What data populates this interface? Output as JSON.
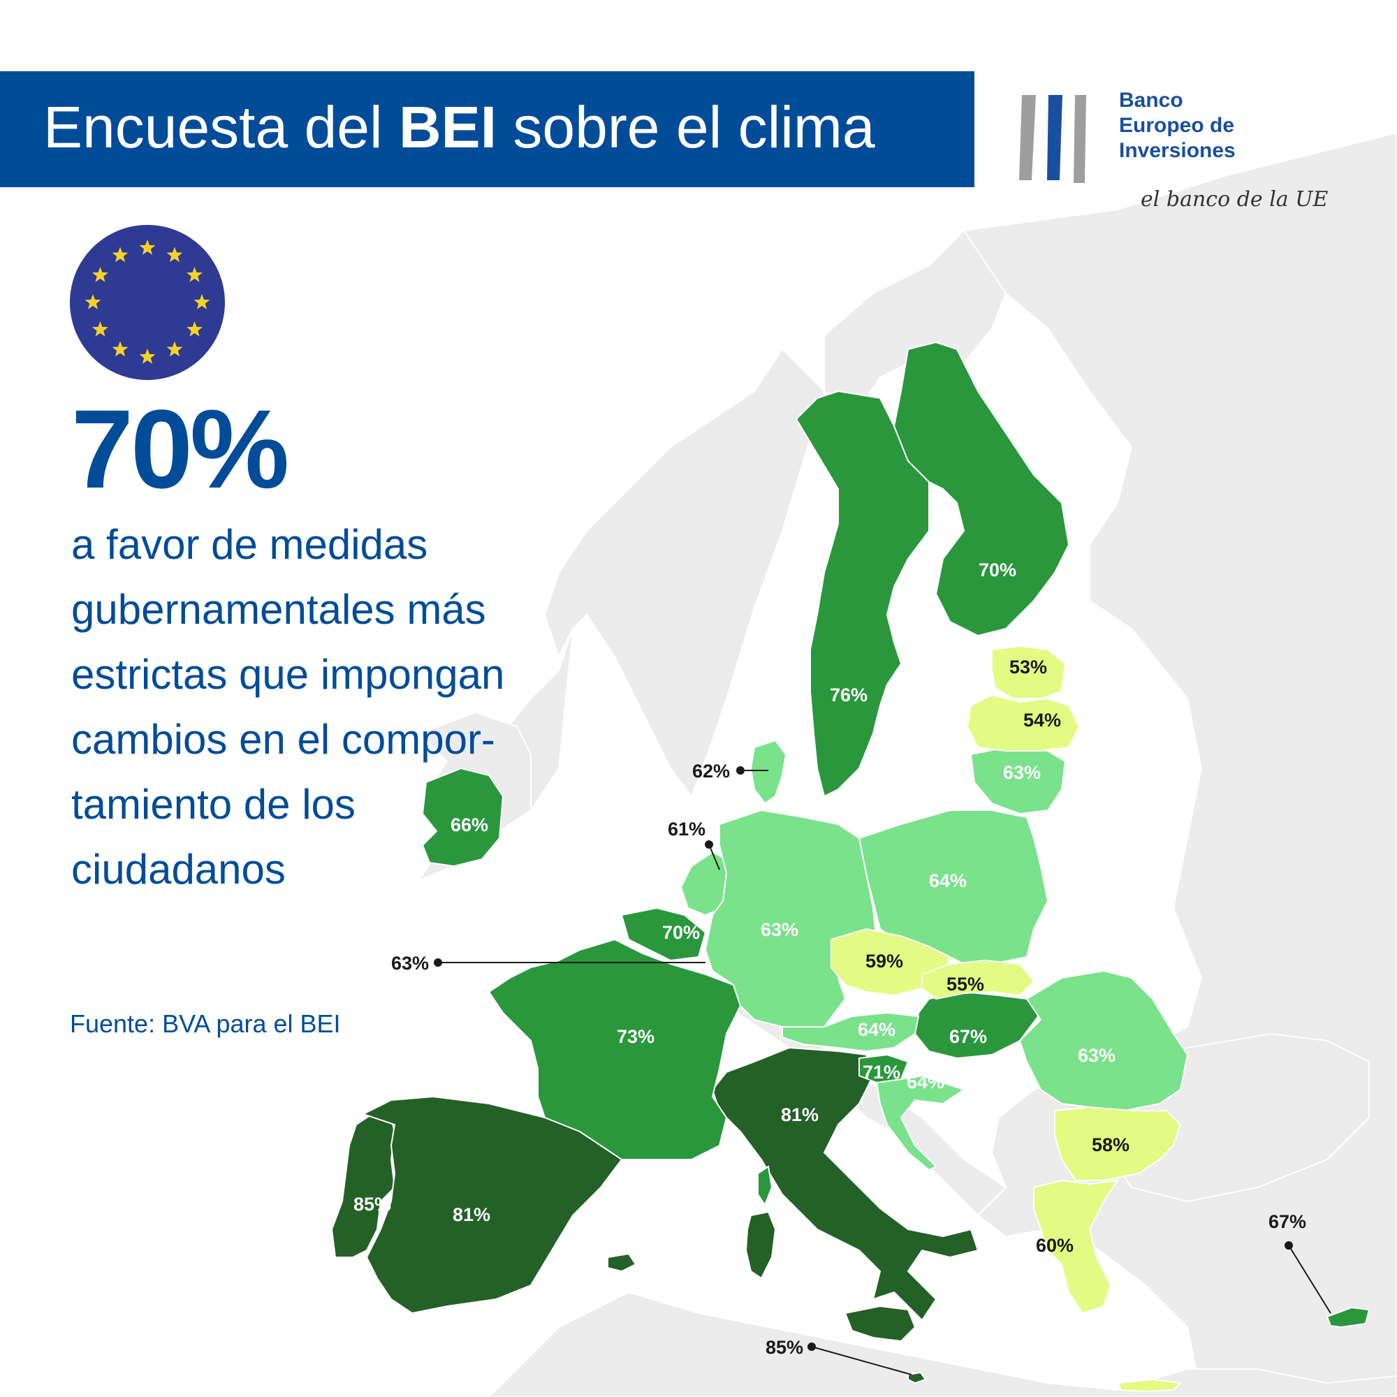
{
  "header": {
    "title_prefix": "Encuesta del ",
    "title_bold": "BEI",
    "title_suffix": " sobre el clima"
  },
  "logo": {
    "name_lines": [
      "Banco",
      "Europeo de",
      "Inversiones"
    ],
    "tagline": "el banco de la UE"
  },
  "headline": {
    "percent": "70%",
    "description_lines": [
      "a favor de medidas",
      "gubernamentales más",
      "estrictas que impongan",
      "cambios en el compor-",
      "tamiento de los",
      "ciudadanos"
    ]
  },
  "source": "Fuente: BVA para el BEI",
  "colors": {
    "brand_blue": "#004c99",
    "eu_flag_blue": "#2e3a93",
    "eu_flag_star": "#f5d327",
    "tier_darkest": "#236127",
    "tier_dark": "#2a973d",
    "tier_light": "#79e28b",
    "tier_yellow": "#e3fb82",
    "non_eu_land": "#ececec"
  },
  "map": {
    "country_values": [
      {
        "country": "Finland",
        "value": "70%"
      },
      {
        "country": "Sweden",
        "value": "76%"
      },
      {
        "country": "Estonia",
        "value": "53%"
      },
      {
        "country": "Latvia",
        "value": "54%"
      },
      {
        "country": "Lithuania",
        "value": "63%"
      },
      {
        "country": "Denmark",
        "value": "62%"
      },
      {
        "country": "Ireland",
        "value": "66%"
      },
      {
        "country": "Netherlands",
        "value": "61%"
      },
      {
        "country": "Poland",
        "value": "64%"
      },
      {
        "country": "Germany",
        "value": "63%"
      },
      {
        "country": "Belgium",
        "value": "70%"
      },
      {
        "country": "Luxembourg",
        "value": "63%"
      },
      {
        "country": "Czechia",
        "value": "59%"
      },
      {
        "country": "Slovakia",
        "value": "55%"
      },
      {
        "country": "France",
        "value": "73%"
      },
      {
        "country": "Austria",
        "value": "64%"
      },
      {
        "country": "Hungary",
        "value": "67%"
      },
      {
        "country": "Romania",
        "value": "63%"
      },
      {
        "country": "Slovenia",
        "value": "71%"
      },
      {
        "country": "Croatia",
        "value": "64%"
      },
      {
        "country": "Italy",
        "value": "81%"
      },
      {
        "country": "Bulgaria",
        "value": "58%"
      },
      {
        "country": "Portugal",
        "value": "85%"
      },
      {
        "country": "Spain",
        "value": "81%"
      },
      {
        "country": "Greece",
        "value": "60%"
      },
      {
        "country": "Cyprus",
        "value": "67%"
      },
      {
        "country": "Malta",
        "value": "85%"
      }
    ]
  }
}
